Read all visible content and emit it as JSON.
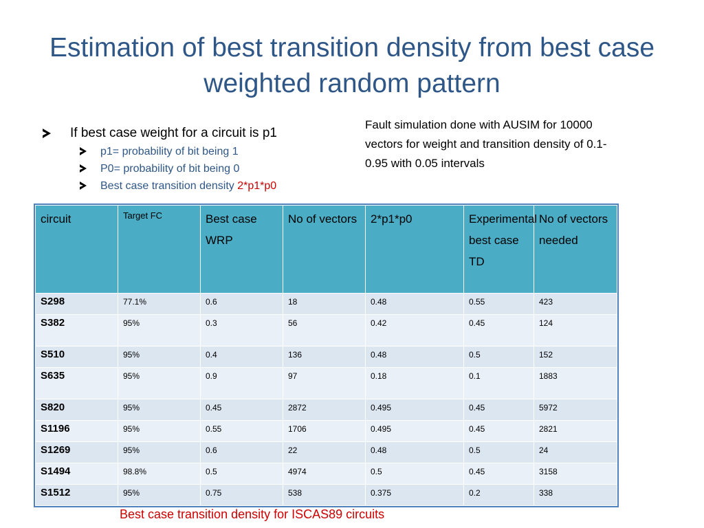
{
  "slide": {
    "title": "Estimation of best transition density from best case weighted random pattern",
    "bullet_main": "If best case weight for a circuit is p1",
    "sub_bullets": [
      "p1= probability of bit being 1",
      "P0= probability of bit being 0"
    ],
    "sub_bullet3_text": "Best case transition density ",
    "sub_bullet3_formula": "2*p1*p0",
    "note": "Fault simulation done with AUSIM for 10000 vectors for weight and transition density  of 0.1-0.95 with 0.05 intervals",
    "caption": "Best case transition density for ISCAS89 circuits",
    "colors": {
      "title": "#2e5687",
      "header_bg": "#4bacc6",
      "row_bg": "#dce6f1",
      "accent_red": "#cc0000"
    }
  },
  "table": {
    "headers": [
      "circuit",
      "Target FC",
      "Best case WRP",
      "No of vectors",
      "2*p1*p0",
      "Experimental best case TD",
      "No of vectors needed"
    ],
    "rows": [
      [
        "S298",
        "77.1%",
        "0.6",
        "18",
        "0.48",
        "0.55",
        "423"
      ],
      [
        "S382",
        "95%",
        "0.3",
        "56",
        "0.42",
        "0.45",
        "124"
      ],
      [
        "S510",
        "95%",
        "0.4",
        "136",
        "0.48",
        "0.5",
        "152"
      ],
      [
        "S635",
        "95%",
        "0.9",
        "97",
        "0.18",
        "0.1",
        "1883"
      ],
      [
        "S820",
        "95%",
        "0.45",
        "2872",
        "0.495",
        "0.45",
        "5972"
      ],
      [
        "S1196",
        "95%",
        "0.55",
        "1706",
        "0.495",
        "0.45",
        "2821"
      ],
      [
        "S1269",
        "95%",
        "0.6",
        "22",
        "0.48",
        "0.5",
        "24"
      ],
      [
        "S1494",
        "98.8%",
        "0.5",
        "4974",
        "0.5",
        "0.45",
        "3158"
      ],
      [
        "S1512",
        "95%",
        "0.75",
        "538",
        "0.375",
        "0.2",
        "338"
      ]
    ]
  }
}
